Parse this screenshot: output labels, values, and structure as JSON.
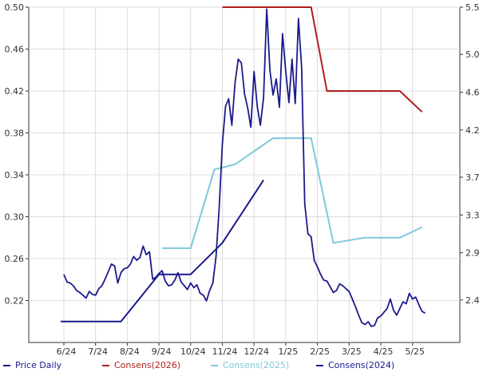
{
  "chart_data": {
    "type": "line",
    "title": "",
    "x_ticks": [
      "6/24",
      "7/24",
      "8/24",
      "9/24",
      "10/24",
      "11/24",
      "12/24",
      "1/25",
      "2/25",
      "3/25",
      "4/25",
      "5/25"
    ],
    "left_axis": {
      "ylim": [
        0.18,
        0.5
      ],
      "ticks": [
        "0.50",
        "0.46",
        "0.42",
        "0.38",
        "0.34",
        "0.30",
        "0.26",
        "0.22"
      ]
    },
    "right_axis": {
      "ylim": [
        1.95,
        5.5
      ],
      "ticks": [
        "5.5",
        "5.0",
        "4.6",
        "4.2",
        "3.7",
        "3.3",
        "2.9",
        "2.4"
      ]
    },
    "grid": true,
    "legend_position": "bottom",
    "series": [
      {
        "name": "Price Daily",
        "axis": "right",
        "color": "#1a1a8c",
        "x": [
          0.0,
          0.1,
          0.2,
          0.3,
          0.4,
          0.5,
          0.6,
          0.7,
          0.8,
          0.9,
          1.0,
          1.1,
          1.2,
          1.3,
          1.4,
          1.5,
          1.6,
          1.7,
          1.8,
          1.9,
          2.0,
          2.1,
          2.2,
          2.3,
          2.4,
          2.5,
          2.6,
          2.7,
          2.8,
          2.9,
          3.0,
          3.1,
          3.2,
          3.3,
          3.4,
          3.5,
          3.6,
          3.7,
          3.8,
          3.9,
          4.0,
          4.1,
          4.2,
          4.3,
          4.4,
          4.5,
          4.6,
          4.7,
          4.8,
          4.9,
          5.0,
          5.1,
          5.2,
          5.3,
          5.4,
          5.5,
          5.6,
          5.7,
          5.8,
          5.9,
          6.0,
          6.1,
          6.2,
          6.3,
          6.4,
          6.5,
          6.6,
          6.7,
          6.8,
          6.9,
          7.0,
          7.1,
          7.2,
          7.3,
          7.4,
          7.5,
          7.6,
          7.7,
          7.8,
          7.9,
          8.0,
          8.1,
          8.2,
          8.3,
          8.4,
          8.5,
          8.6,
          8.7,
          8.8,
          8.9,
          9.0,
          9.1,
          9.2,
          9.3,
          9.4,
          9.5,
          9.6,
          9.7,
          9.8,
          9.9,
          10.0,
          10.1,
          10.2,
          10.3,
          10.4,
          10.5,
          10.6,
          10.7,
          10.8,
          10.9,
          11.0,
          11.1,
          11.2,
          11.3,
          11.4
        ],
        "values": [
          2.67,
          2.59,
          2.58,
          2.55,
          2.5,
          2.48,
          2.45,
          2.42,
          2.49,
          2.46,
          2.45,
          2.52,
          2.55,
          2.62,
          2.7,
          2.78,
          2.76,
          2.58,
          2.69,
          2.73,
          2.74,
          2.78,
          2.86,
          2.82,
          2.85,
          2.97,
          2.88,
          2.91,
          2.62,
          2.64,
          2.68,
          2.71,
          2.6,
          2.55,
          2.56,
          2.61,
          2.69,
          2.59,
          2.55,
          2.51,
          2.58,
          2.53,
          2.56,
          2.47,
          2.45,
          2.39,
          2.5,
          2.58,
          2.86,
          3.37,
          4.05,
          4.45,
          4.53,
          4.25,
          4.7,
          4.95,
          4.91,
          4.58,
          4.43,
          4.23,
          4.82,
          4.45,
          4.25,
          4.54,
          5.48,
          4.83,
          4.57,
          4.74,
          4.44,
          5.22,
          4.82,
          4.49,
          4.95,
          4.48,
          5.38,
          4.86,
          3.42,
          3.1,
          3.07,
          2.82,
          2.75,
          2.67,
          2.61,
          2.6,
          2.54,
          2.48,
          2.5,
          2.57,
          2.55,
          2.52,
          2.49,
          2.41,
          2.33,
          2.24,
          2.16,
          2.14,
          2.17,
          2.12,
          2.13,
          2.21,
          2.23,
          2.27,
          2.31,
          2.41,
          2.29,
          2.24,
          2.31,
          2.38,
          2.36,
          2.47,
          2.41,
          2.43,
          2.35,
          2.28,
          2.26
        ]
      },
      {
        "name": "Consens(2026)",
        "axis": "left",
        "color": "#b01c1c",
        "x": [
          5.0,
          6.0,
          7.0,
          7.8,
          8.3,
          9.0,
          10.0,
          10.6,
          11.3
        ],
        "values": [
          0.5,
          0.5,
          0.5,
          0.5,
          0.42,
          0.42,
          0.42,
          0.42,
          0.4
        ]
      },
      {
        "name": "Consens(2025)",
        "axis": "left",
        "color": "#7ec8d8",
        "x": [
          3.1,
          4.0,
          4.75,
          5.4,
          6.6,
          7.8,
          8.5,
          9.5,
          10.6,
          11.3
        ],
        "values": [
          0.27,
          0.27,
          0.345,
          0.35,
          0.375,
          0.375,
          0.275,
          0.28,
          0.28,
          0.29
        ]
      },
      {
        "name": "Consens(2024)",
        "axis": "left",
        "color": "#1a1a8c",
        "x": [
          -0.1,
          1.8,
          3.0,
          4.0,
          5.0,
          6.3
        ],
        "values": [
          0.2,
          0.2,
          0.245,
          0.245,
          0.275,
          0.335
        ]
      }
    ]
  }
}
